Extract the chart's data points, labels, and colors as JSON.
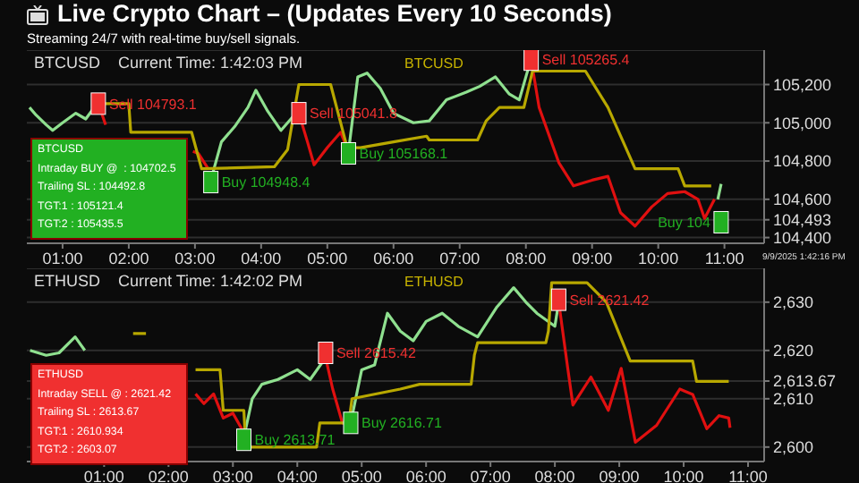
{
  "chart_data": [
    {
      "type": "line",
      "title": "Live Crypto Chart – (Updates Every 10 Seconds)",
      "subtitle": "Streaming 24/7 with real-time buy/sell signals.",
      "xlim": [
        0.46,
        11.6
      ],
      "ylim": [
        104370,
        105380
      ],
      "grid": "y",
      "xticks": [
        {
          "value": 1,
          "label": "01:00"
        },
        {
          "value": 2,
          "label": "02:00"
        },
        {
          "value": 3,
          "label": "03:00"
        },
        {
          "value": 4,
          "label": "04:00"
        },
        {
          "value": 5,
          "label": "05:00"
        },
        {
          "value": 6,
          "label": "06:00"
        },
        {
          "value": 7,
          "label": "07:00"
        },
        {
          "value": 8,
          "label": "08:00"
        },
        {
          "value": 9,
          "label": "09:00"
        },
        {
          "value": 10,
          "label": "10:00"
        },
        {
          "value": 11,
          "label": "11:00"
        }
      ],
      "yticks": [
        {
          "value": 104400,
          "label": "104,400"
        },
        {
          "value": 104493,
          "label": "104,493"
        },
        {
          "value": 104600,
          "label": "104,600"
        },
        {
          "value": 104800,
          "label": "104,800"
        },
        {
          "value": 105000,
          "label": "105,000"
        },
        {
          "value": 105200,
          "label": "105,200"
        }
      ],
      "series": [
        {
          "type": "line",
          "color": "#8fe08f",
          "x": [
            0.5,
            0.6,
            0.75,
            0.85,
            1.0,
            1.2,
            1.35,
            1.5,
            2.0,
            3.24,
            3.4,
            3.6,
            3.8,
            3.92,
            4.1,
            4.3,
            4.5,
            5.0,
            5.32,
            5.46,
            5.6,
            5.8,
            6.0,
            6.3,
            6.54,
            6.8,
            7.1,
            7.3,
            7.54,
            7.75,
            7.9,
            8.05,
            9.0,
            10.9,
            10.95
          ],
          "values": [
            105080,
            105040,
            104990,
            104960,
            105000,
            105050,
            105020,
            105090,
            null,
            104700,
            104900,
            104980,
            105080,
            105170,
            105060,
            104960,
            105040,
            null,
            104850,
            105240,
            105260,
            105180,
            105050,
            105000,
            105010,
            105120,
            105160,
            105190,
            105240,
            105150,
            105120,
            105300,
            null,
            104600,
            104680
          ]
        },
        {
          "type": "line",
          "color": "#e01010",
          "x": [
            1.54,
            1.65,
            2.0,
            2.97,
            3.05,
            3.2,
            3.5,
            4.57,
            4.7,
            4.8,
            5.0,
            5.2,
            5.32,
            6.0,
            8.08,
            8.2,
            8.5,
            8.72,
            9.0,
            9.24,
            9.43,
            9.65,
            9.9,
            10.14,
            10.4,
            10.6,
            10.7,
            10.85
          ],
          "values": [
            105100,
            104990,
            null,
            104850,
            104840,
            104760,
            null,
            105050,
            104900,
            104780,
            104870,
            104950,
            104850,
            null,
            105330,
            105080,
            104790,
            104670,
            104700,
            104720,
            104530,
            104460,
            104560,
            104630,
            104640,
            104600,
            104500,
            104600
          ]
        },
        {
          "type": "line",
          "color": "#b8a800",
          "x": [
            1.5,
            2.0,
            2.03,
            2.95,
            3.1,
            4.2,
            4.4,
            4.57,
            5.05,
            5.3,
            5.5,
            6.0,
            6.5,
            6.54,
            7.27,
            7.4,
            7.6,
            7.97,
            8.1,
            8.9,
            9.24,
            9.65,
            10.3,
            10.4,
            10.8
          ],
          "values": [
            105100,
            105100,
            104950,
            104950,
            104760,
            104770,
            104860,
            105200,
            105200,
            104870,
            104870,
            104900,
            104930,
            104910,
            104910,
            105010,
            105080,
            105080,
            105270,
            105270,
            105080,
            104760,
            104760,
            104670,
            104670
          ]
        },
        {
          "type": "scatter",
          "color": "#22b022",
          "marker": "square",
          "x": [
            3.24,
            5.32,
            10.95
          ],
          "values": [
            104690,
            104840,
            104480
          ]
        },
        {
          "type": "scatter",
          "color": "#f03030",
          "marker": "square",
          "x": [
            1.54,
            4.57,
            8.08
          ],
          "values": [
            105100,
            105050,
            105330
          ]
        }
      ],
      "annotations": [
        "BTCUSD    Current Time: 1:42:03 PM",
        "BTCUSD",
        "BTCUSD",
        "Intraday BUY @  : 104702.5",
        "Trailing SL : 104492.8",
        "TGT:1 : 105121.4",
        "TGT:2 : 105435.5",
        "9/9/2025 1:42:16 PM",
        {
          "text": "Sell 104793.1",
          "x": 1.54,
          "y": 105100
        },
        {
          "text": "Buy 104948.4",
          "x": 3.24,
          "y": 104690
        },
        {
          "text": "Sell 105041.8",
          "x": 4.57,
          "y": 105050
        },
        {
          "text": "Buy 105168.1",
          "x": 5.32,
          "y": 104840
        },
        {
          "text": "Sell 105265.4",
          "x": 8.08,
          "y": 105330
        },
        {
          "text": "Buy 104",
          "x": 10.95,
          "y": 104480
        }
      ]
    },
    {
      "type": "line",
      "xlim": [
        -0.2,
        11.25
      ],
      "ylim": [
        2597,
        2637
      ],
      "grid": "y",
      "xticks": [
        {
          "value": 1,
          "label": "01:00"
        },
        {
          "value": 2,
          "label": "02:00"
        },
        {
          "value": 3,
          "label": "03:00"
        },
        {
          "value": 4,
          "label": "04:00"
        },
        {
          "value": 5,
          "label": "05:00"
        },
        {
          "value": 6,
          "label": "06:00"
        },
        {
          "value": 7,
          "label": "07:00"
        },
        {
          "value": 8,
          "label": "08:00"
        },
        {
          "value": 9,
          "label": "09:00"
        },
        {
          "value": 10,
          "label": "10:00"
        },
        {
          "value": 11,
          "label": "11:00"
        }
      ],
      "yticks": [
        {
          "value": 2600,
          "label": "2,600"
        },
        {
          "value": 2610,
          "label": "2,610"
        },
        {
          "value": 2613.67,
          "label": "2,613.67"
        },
        {
          "value": 2620,
          "label": "2,620"
        },
        {
          "value": 2630,
          "label": "2,630"
        }
      ],
      "series": [
        {
          "type": "line",
          "color": "#8fe08f",
          "x": [
            -0.15,
            0.1,
            0.3,
            0.55,
            0.7,
            2.0,
            3.17,
            3.3,
            3.45,
            3.7,
            4.0,
            4.2,
            4.44,
            4.6,
            4.83,
            5.0,
            5.2,
            5.4,
            5.6,
            5.8,
            6.0,
            6.25,
            6.5,
            6.8,
            7.1,
            7.36,
            7.55,
            7.72,
            8.0,
            8.06
          ],
          "values": [
            2620,
            2619,
            2619.5,
            2622.8,
            2620,
            null,
            2602,
            2610,
            2613,
            2614,
            2616,
            2614,
            2618.5,
            null,
            2605,
            2616,
            2617,
            2627.7,
            2624,
            2622,
            2626,
            2627.7,
            2625,
            2622.8,
            2629,
            2633,
            2630,
            2627.7,
            2625,
            2630
          ]
        },
        {
          "type": "line",
          "color": "#e01010",
          "x": [
            2.42,
            2.55,
            2.7,
            2.85,
            3.0,
            3.17,
            3.5,
            4.44,
            4.55,
            4.7,
            4.83,
            6.0,
            8.06,
            8.2,
            8.28,
            8.56,
            8.83,
            9.03,
            9.25,
            9.58,
            9.94,
            10.14,
            10.36,
            10.55,
            10.7,
            10.72
          ],
          "values": [
            2611,
            2609,
            2611,
            2606,
            2607,
            2603,
            null,
            2618.5,
            2612,
            2605,
            2605,
            null,
            2630,
            2616.3,
            2608.7,
            2614.5,
            2607.6,
            2616.3,
            2601,
            2604.5,
            2612,
            2610.9,
            2603.8,
            2606.5,
            2606,
            2604
          ]
        },
        {
          "type": "line",
          "color": "#b8a800",
          "x": [
            1.45,
            1.65,
            1.7,
            2.42,
            2.8,
            2.85,
            3.17,
            3.2,
            4.3,
            4.35,
            4.8,
            4.85,
            5.6,
            5.9,
            6.7,
            6.75,
            6.8,
            7.86,
            7.9,
            7.95,
            8.5,
            8.8,
            9.17,
            10.14,
            10.2,
            10.7
          ],
          "values": [
            2623.5,
            2623.5,
            null,
            2616,
            2616,
            2607.6,
            2607.6,
            2600,
            2600,
            2605,
            2605,
            2610,
            2612,
            2613,
            2613,
            2619,
            2621.6,
            2621.6,
            2624,
            2634,
            2634,
            2630,
            2617.8,
            2617.8,
            2613.6,
            2613.6
          ]
        },
        {
          "type": "scatter",
          "color": "#22b022",
          "marker": "square",
          "x": [
            3.17,
            4.83
          ],
          "values": [
            2601.5,
            2605
          ]
        },
        {
          "type": "scatter",
          "color": "#f03030",
          "marker": "square",
          "x": [
            4.44,
            8.06
          ],
          "values": [
            2619.5,
            2630.5
          ]
        }
      ],
      "annotations": [
        "ETHUSD    Current Time: 1:42:02 PM",
        "ETHUSD",
        "ETHUSD",
        "Intraday SELL @ : 2621.42",
        "Trailing SL : 2613.67",
        "TGT:1 : 2610.934",
        "TGT:2 : 2603.07",
        {
          "text": "Buy 2613.71",
          "x": 3.17,
          "y": 2601.5
        },
        {
          "text": "Sell 2615.42",
          "x": 4.44,
          "y": 2619.5
        },
        {
          "text": "Buy 2616.71",
          "x": 4.83,
          "y": 2605
        },
        {
          "text": "Sell 2621.42",
          "x": 8.06,
          "y": 2630.5
        }
      ]
    }
  ]
}
